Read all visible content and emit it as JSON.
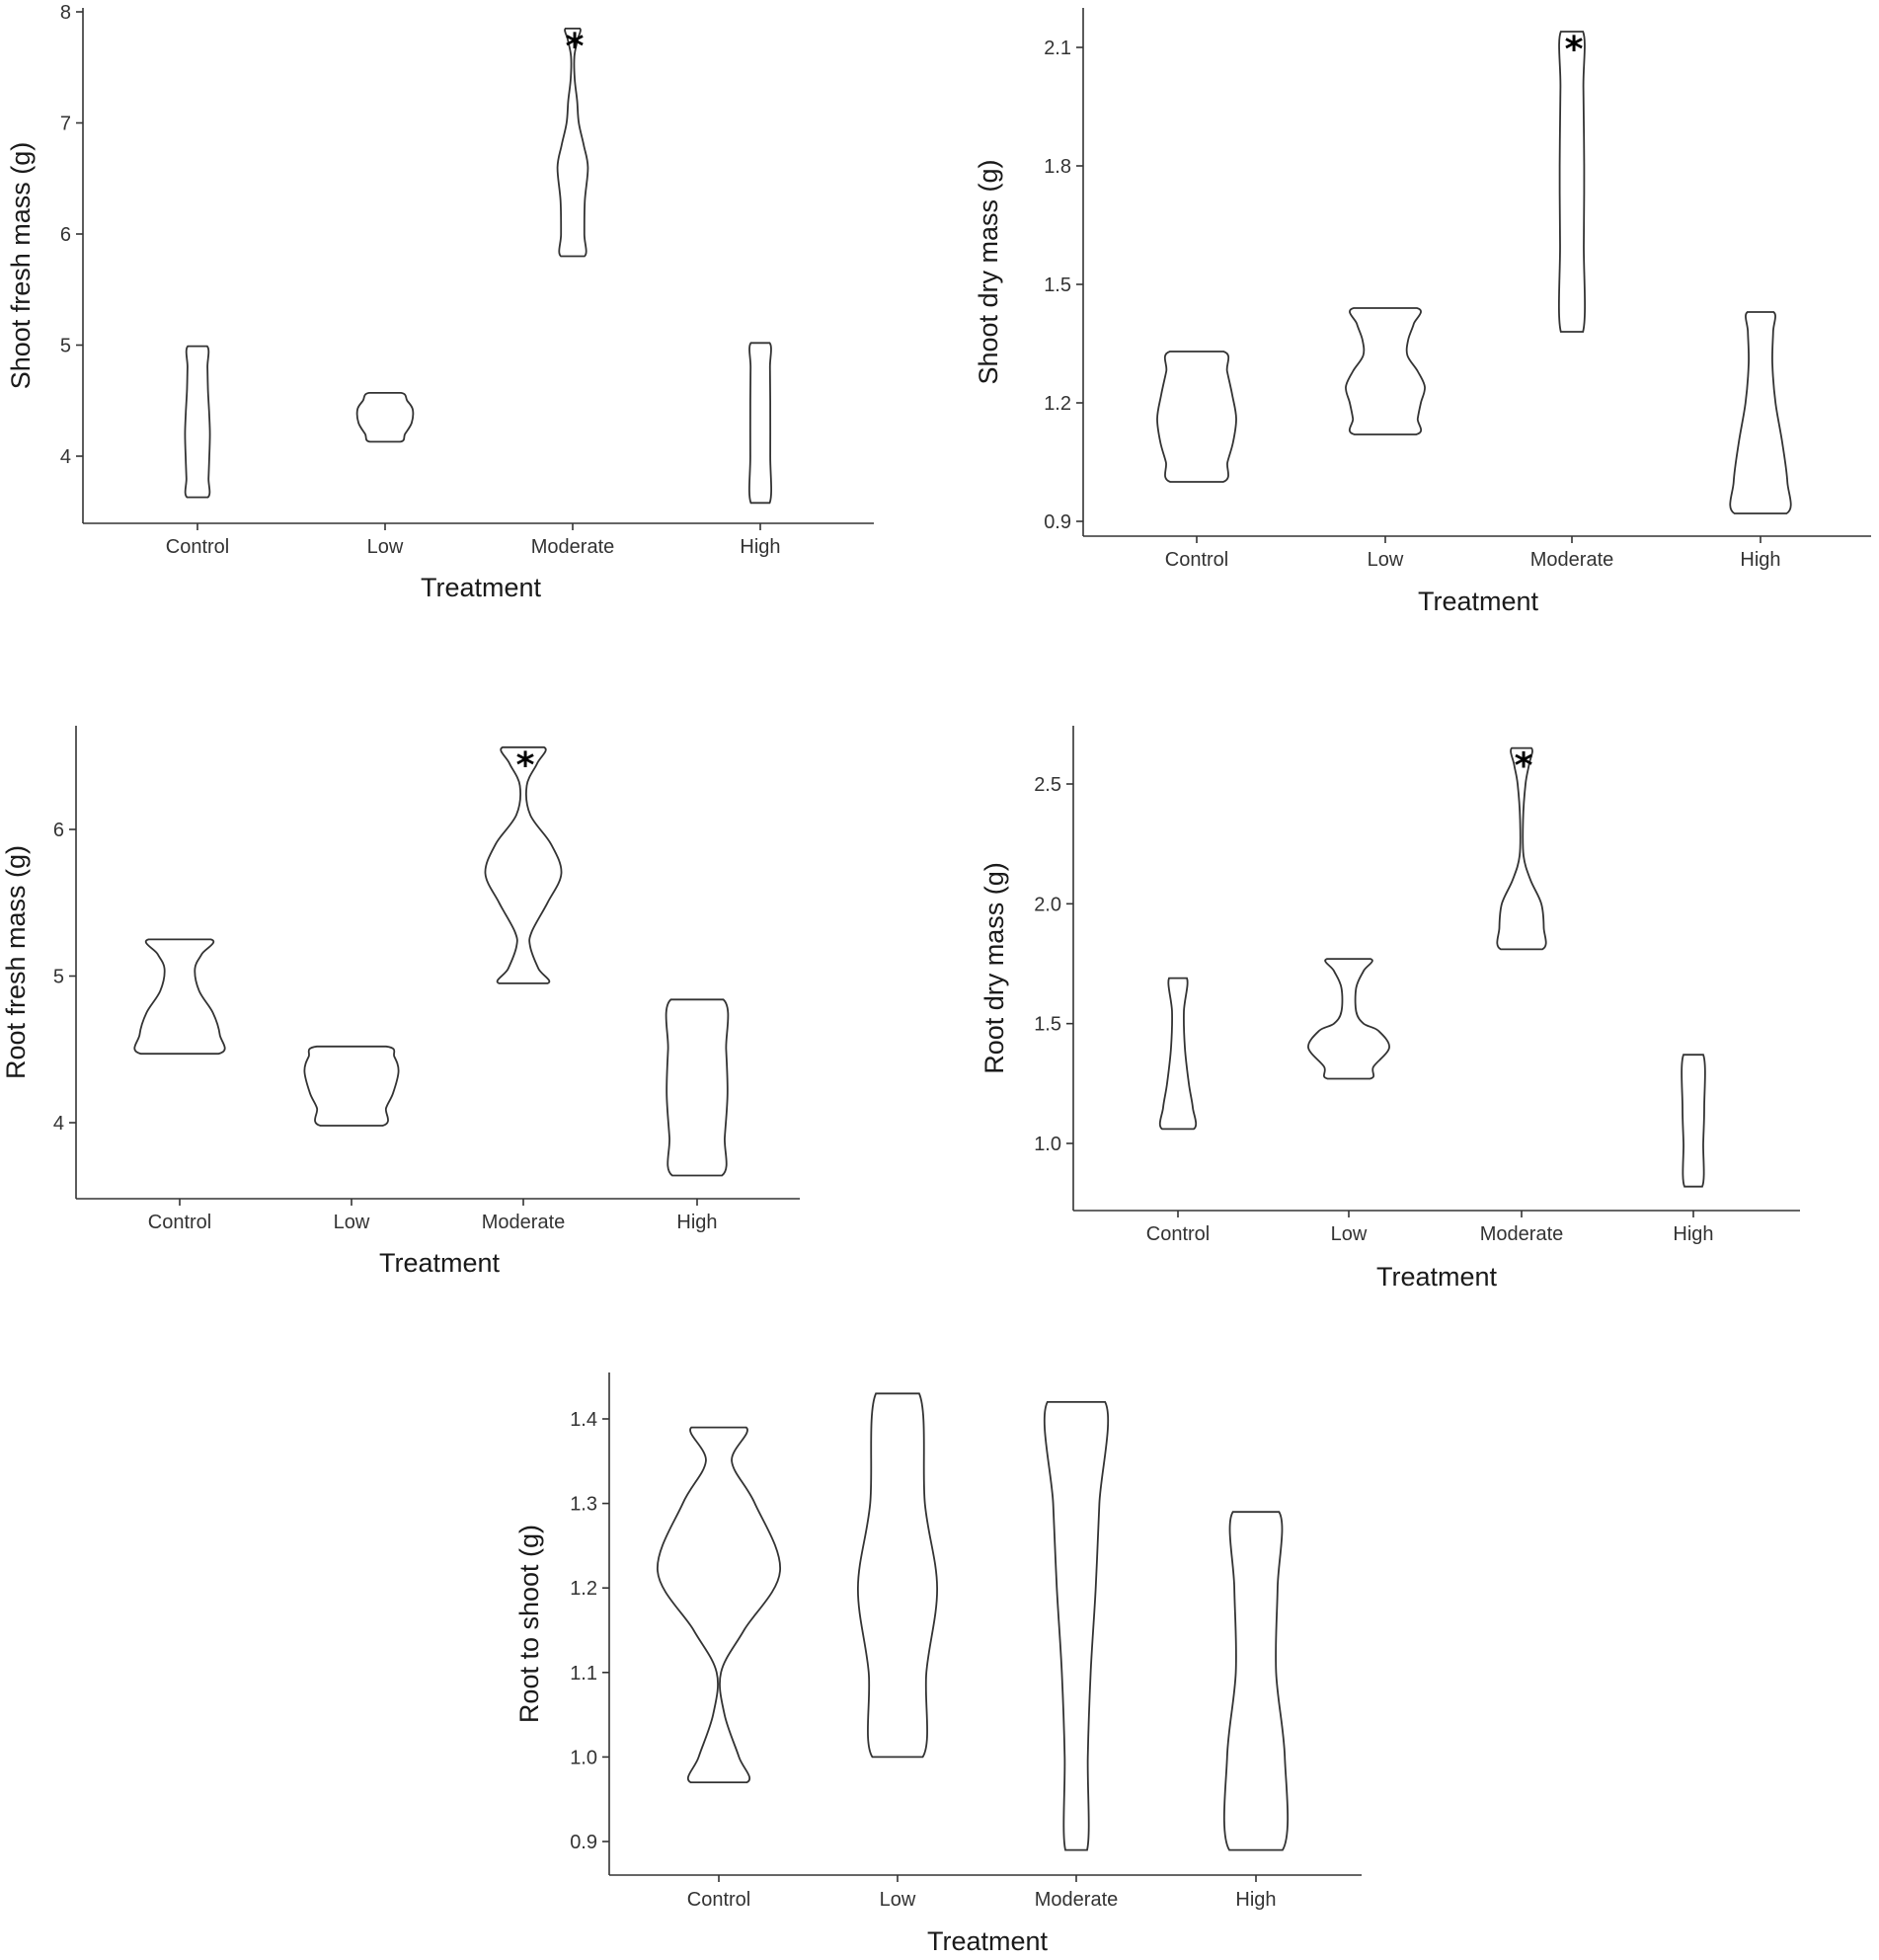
{
  "chart_data": [
    {
      "type": "violin",
      "xlabel": "Treatment",
      "ylabel": "Shoot fresh mass (g)",
      "categories": [
        "Control",
        "Low",
        "Moderate",
        "High"
      ],
      "yticks": [
        4,
        5,
        6,
        7,
        8
      ],
      "ylim": [
        3.4,
        8.1
      ],
      "violins": [
        {
          "min": 3.63,
          "max": 4.99,
          "profile": [
            [
              3.63,
              0.38
            ],
            [
              3.8,
              0.4
            ],
            [
              4.0,
              0.43
            ],
            [
              4.2,
              0.45
            ],
            [
              4.4,
              0.42
            ],
            [
              4.6,
              0.38
            ],
            [
              4.8,
              0.36
            ],
            [
              4.99,
              0.35
            ]
          ],
          "significant": false
        },
        {
          "min": 4.13,
          "max": 4.57,
          "profile": [
            [
              4.13,
              0.55
            ],
            [
              4.2,
              0.72
            ],
            [
              4.3,
              0.96
            ],
            [
              4.42,
              1.0
            ],
            [
              4.5,
              0.8
            ],
            [
              4.57,
              0.58
            ]
          ],
          "significant": false
        },
        {
          "min": 5.8,
          "max": 7.85,
          "profile": [
            [
              5.8,
              0.43
            ],
            [
              6.0,
              0.42
            ],
            [
              6.3,
              0.44
            ],
            [
              6.6,
              0.55
            ],
            [
              6.8,
              0.4
            ],
            [
              7.0,
              0.22
            ],
            [
              7.2,
              0.16
            ],
            [
              7.4,
              0.07
            ],
            [
              7.6,
              0.06
            ],
            [
              7.75,
              0.18
            ],
            [
              7.85,
              0.26
            ]
          ],
          "significant": true
        },
        {
          "min": 3.58,
          "max": 5.02,
          "profile": [
            [
              3.58,
              0.34
            ],
            [
              4.0,
              0.36
            ],
            [
              4.5,
              0.36
            ],
            [
              4.8,
              0.35
            ],
            [
              5.02,
              0.34
            ]
          ],
          "significant": false
        }
      ]
    },
    {
      "type": "violin",
      "xlabel": "Treatment",
      "ylabel": "Shoot dry mass (g)",
      "categories": [
        "Control",
        "Low",
        "Moderate",
        "High"
      ],
      "yticks": [
        0.9,
        1.2,
        1.5,
        1.8,
        2.1
      ],
      "ylim": [
        0.86,
        2.19
      ],
      "violins": [
        {
          "min": 1.0,
          "max": 1.33,
          "profile": [
            [
              1.0,
              0.67
            ],
            [
              1.05,
              0.78
            ],
            [
              1.1,
              0.92
            ],
            [
              1.16,
              1.0
            ],
            [
              1.22,
              0.9
            ],
            [
              1.28,
              0.77
            ],
            [
              1.33,
              0.68
            ]
          ],
          "significant": false
        },
        {
          "min": 1.12,
          "max": 1.44,
          "profile": [
            [
              1.12,
              0.78
            ],
            [
              1.16,
              0.82
            ],
            [
              1.2,
              0.9
            ],
            [
              1.24,
              1.0
            ],
            [
              1.28,
              0.82
            ],
            [
              1.32,
              0.56
            ],
            [
              1.36,
              0.58
            ],
            [
              1.4,
              0.72
            ],
            [
              1.44,
              0.8
            ]
          ],
          "significant": false
        },
        {
          "min": 1.38,
          "max": 2.14,
          "profile": [
            [
              1.38,
              0.28
            ],
            [
              1.6,
              0.3
            ],
            [
              1.8,
              0.31
            ],
            [
              2.0,
              0.29
            ],
            [
              2.14,
              0.28
            ]
          ],
          "significant": true
        },
        {
          "min": 0.92,
          "max": 1.43,
          "profile": [
            [
              0.92,
              0.66
            ],
            [
              1.0,
              0.68
            ],
            [
              1.1,
              0.55
            ],
            [
              1.2,
              0.38
            ],
            [
              1.3,
              0.3
            ],
            [
              1.38,
              0.32
            ],
            [
              1.43,
              0.33
            ]
          ],
          "significant": false
        }
      ]
    },
    {
      "type": "violin",
      "xlabel": "Treatment",
      "ylabel": "Root fresh mass (g)",
      "categories": [
        "Control",
        "Low",
        "Moderate",
        "High"
      ],
      "yticks": [
        4,
        5,
        6
      ],
      "ylim": [
        3.5,
        6.7
      ],
      "violins": [
        {
          "min": 4.47,
          "max": 5.25,
          "profile": [
            [
              4.47,
              0.56
            ],
            [
              4.6,
              0.58
            ],
            [
              4.75,
              0.48
            ],
            [
              4.9,
              0.28
            ],
            [
              5.05,
              0.22
            ],
            [
              5.15,
              0.32
            ],
            [
              5.25,
              0.45
            ]
          ],
          "significant": false
        },
        {
          "min": 3.98,
          "max": 4.52,
          "profile": [
            [
              3.98,
              0.45
            ],
            [
              4.1,
              0.5
            ],
            [
              4.2,
              0.6
            ],
            [
              4.35,
              0.68
            ],
            [
              4.45,
              0.62
            ],
            [
              4.52,
              0.5
            ]
          ],
          "significant": false
        },
        {
          "min": 4.95,
          "max": 6.56,
          "profile": [
            [
              4.95,
              0.35
            ],
            [
              5.05,
              0.22
            ],
            [
              5.2,
              0.1
            ],
            [
              5.3,
              0.12
            ],
            [
              5.5,
              0.35
            ],
            [
              5.7,
              0.55
            ],
            [
              5.9,
              0.4
            ],
            [
              6.1,
              0.1
            ],
            [
              6.3,
              0.05
            ],
            [
              6.45,
              0.2
            ],
            [
              6.56,
              0.3
            ]
          ],
          "significant": true
        },
        {
          "min": 3.64,
          "max": 4.84,
          "profile": [
            [
              3.64,
              0.36
            ],
            [
              3.9,
              0.4
            ],
            [
              4.2,
              0.44
            ],
            [
              4.5,
              0.42
            ],
            [
              4.84,
              0.38
            ]
          ],
          "significant": false
        }
      ]
    },
    {
      "type": "violin",
      "xlabel": "Treatment",
      "ylabel": "Root dry mass (g)",
      "categories": [
        "Control",
        "Low",
        "Moderate",
        "High"
      ],
      "yticks": [
        1.0,
        1.5,
        2.0,
        2.5
      ],
      "ylim": [
        0.78,
        2.67
      ],
      "violins": [
        {
          "min": 1.06,
          "max": 1.69,
          "profile": [
            [
              1.06,
              0.32
            ],
            [
              1.15,
              0.3
            ],
            [
              1.25,
              0.22
            ],
            [
              1.4,
              0.14
            ],
            [
              1.55,
              0.12
            ],
            [
              1.69,
              0.18
            ]
          ],
          "significant": false
        },
        {
          "min": 1.27,
          "max": 1.77,
          "profile": [
            [
              1.27,
              0.43
            ],
            [
              1.32,
              0.5
            ],
            [
              1.4,
              0.82
            ],
            [
              1.47,
              0.6
            ],
            [
              1.5,
              0.3
            ],
            [
              1.55,
              0.15
            ],
            [
              1.65,
              0.15
            ],
            [
              1.72,
              0.3
            ],
            [
              1.77,
              0.44
            ]
          ],
          "significant": false
        },
        {
          "min": 1.81,
          "max": 2.65,
          "profile": [
            [
              1.81,
              0.42
            ],
            [
              1.9,
              0.45
            ],
            [
              2.0,
              0.4
            ],
            [
              2.1,
              0.18
            ],
            [
              2.2,
              0.04
            ],
            [
              2.35,
              0.03
            ],
            [
              2.5,
              0.08
            ],
            [
              2.58,
              0.15
            ],
            [
              2.65,
              0.2
            ]
          ],
          "significant": true
        },
        {
          "min": 0.82,
          "max": 1.37,
          "profile": [
            [
              0.82,
              0.18
            ],
            [
              1.0,
              0.2
            ],
            [
              1.15,
              0.22
            ],
            [
              1.37,
              0.2
            ]
          ],
          "significant": false
        }
      ]
    },
    {
      "type": "violin",
      "xlabel": "Treatment",
      "ylabel": "Root to shoot (g)",
      "categories": [
        "Control",
        "Low",
        "Moderate",
        "High"
      ],
      "yticks": [
        0.9,
        1.0,
        1.1,
        1.2,
        1.3,
        1.4
      ],
      "ylim": [
        0.86,
        1.46
      ],
      "violins": [
        {
          "min": 0.97,
          "max": 1.39,
          "profile": [
            [
              0.97,
              0.39
            ],
            [
              1.0,
              0.28
            ],
            [
              1.05,
              0.08
            ],
            [
              1.1,
              0.03
            ],
            [
              1.15,
              0.35
            ],
            [
              1.22,
              0.85
            ],
            [
              1.3,
              0.5
            ],
            [
              1.35,
              0.18
            ],
            [
              1.39,
              0.38
            ]
          ],
          "significant": false
        },
        {
          "min": 1.0,
          "max": 1.43,
          "profile": [
            [
              1.0,
              0.35
            ],
            [
              1.1,
              0.4
            ],
            [
              1.2,
              0.55
            ],
            [
              1.3,
              0.38
            ],
            [
              1.43,
              0.3
            ]
          ],
          "significant": false
        },
        {
          "min": 0.89,
          "max": 1.42,
          "profile": [
            [
              0.89,
              0.15
            ],
            [
              1.0,
              0.16
            ],
            [
              1.1,
              0.2
            ],
            [
              1.2,
              0.27
            ],
            [
              1.3,
              0.32
            ],
            [
              1.42,
              0.4
            ]
          ],
          "significant": false
        },
        {
          "min": 0.89,
          "max": 1.29,
          "profile": [
            [
              0.89,
              0.37
            ],
            [
              1.0,
              0.4
            ],
            [
              1.1,
              0.28
            ],
            [
              1.2,
              0.3
            ],
            [
              1.29,
              0.32
            ]
          ],
          "significant": false
        }
      ]
    }
  ]
}
